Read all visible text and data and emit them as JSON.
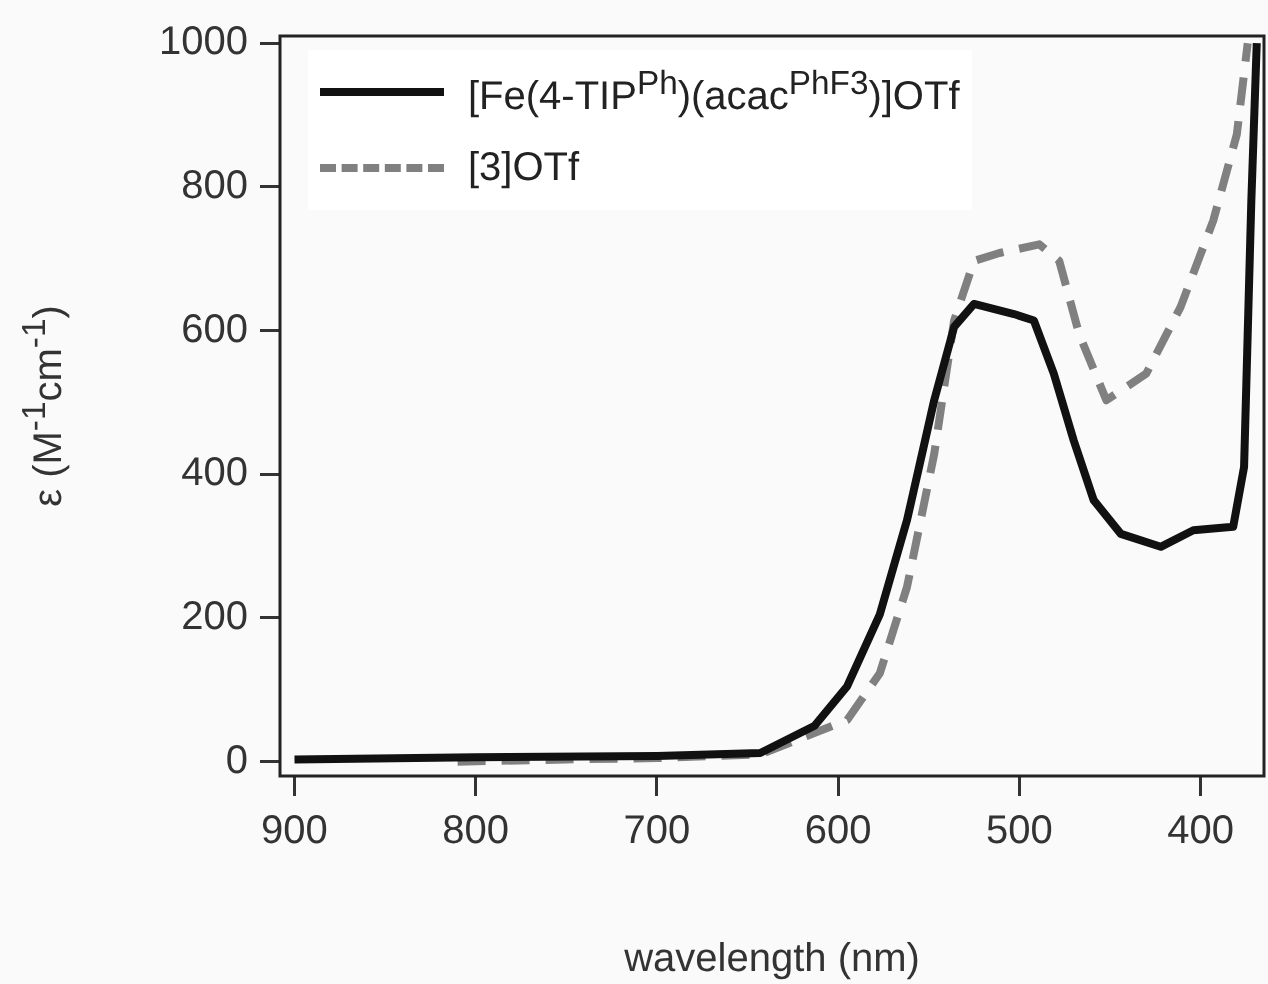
{
  "chart_data": {
    "type": "line",
    "xlabel": "wavelength (nm)",
    "ylabel": "ε (M$^{-1}$cm$^{-1}$)",
    "xlim": [
      908,
      365
    ],
    "xticks": [
      900,
      800,
      700,
      600,
      500,
      400
    ],
    "ylim": [
      -20,
      1010
    ],
    "yticks": [
      0,
      200,
      400,
      600,
      800,
      1000
    ],
    "grid": false,
    "legend": "top left",
    "marker": "none",
    "series": [
      {
        "name": "[Fe(4-TIP$^{Ph}$)(acac$^{PhF3}$)]OTf",
        "color": "#111111",
        "line_style": "solid",
        "x": [
          900,
          800,
          700,
          643,
          613,
          595,
          577,
          562,
          547,
          536,
          525,
          503,
          492,
          481,
          470,
          459,
          444,
          422,
          404,
          382,
          376,
          372,
          369
        ],
        "values": [
          3,
          6,
          8,
          12,
          50,
          105,
          205,
          336,
          503,
          605,
          637,
          623,
          614,
          540,
          447,
          364,
          317,
          299,
          322,
          327,
          410,
          780,
          1000
        ]
      },
      {
        "name": "[3]OTf",
        "color": "#808080",
        "line_style": "dashed",
        "x": [
          810,
          750,
          700,
          643,
          595,
          577,
          562,
          547,
          536,
          525,
          511,
          489,
          478,
          467,
          452,
          430,
          411,
          393,
          380,
          374
        ],
        "values": [
          0,
          3,
          5,
          10,
          58,
          123,
          243,
          428,
          614,
          697,
          708,
          720,
          697,
          595,
          503,
          540,
          633,
          753,
          873,
          1000
        ]
      }
    ]
  }
}
